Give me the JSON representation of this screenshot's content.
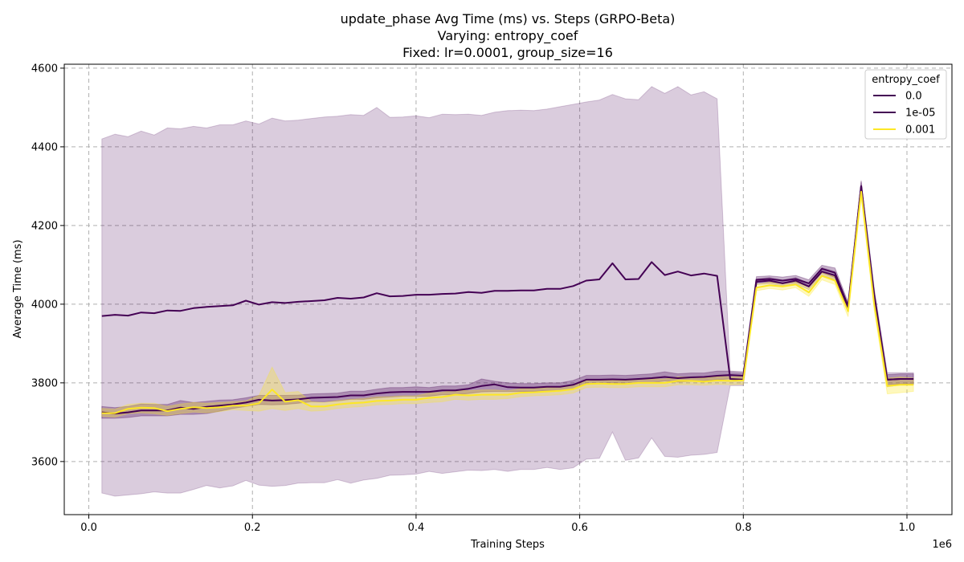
{
  "chart_data": {
    "type": "line",
    "title_lines": [
      "update_phase Avg Time (ms) vs. Steps (GRPO-Beta)",
      "Varying: entropy_coef",
      "Fixed: lr=0.0001, group_size=16"
    ],
    "xlabel": "Training Steps",
    "ylabel": "Average Time (ms)",
    "x_offset_label": "1e6",
    "xlim": [
      -0.03,
      1.055
    ],
    "ylim": [
      3465,
      4610
    ],
    "xticks": [
      0.0,
      0.2,
      0.4,
      0.6,
      0.8,
      1.0
    ],
    "xtick_labels": [
      "0.0",
      "0.2",
      "0.4",
      "0.6",
      "0.8",
      "1.0"
    ],
    "yticks": [
      3600,
      3800,
      4000,
      4200,
      4400,
      4600
    ],
    "ytick_labels": [
      "3600",
      "3800",
      "4000",
      "4200",
      "4400",
      "4600"
    ],
    "grid": true,
    "legend": {
      "title": "entropy_coef",
      "placement": "top-right"
    },
    "series": [
      {
        "name": "0.0",
        "color": "#440154",
        "band_opacity": 0.2,
        "x": [
          0.016,
          0.032,
          0.048,
          0.064,
          0.08,
          0.096,
          0.112,
          0.128,
          0.144,
          0.16,
          0.176,
          0.192,
          0.208,
          0.224,
          0.24,
          0.256,
          0.272,
          0.288,
          0.304,
          0.32,
          0.336,
          0.352,
          0.368,
          0.384,
          0.4,
          0.416,
          0.432,
          0.448,
          0.464,
          0.48,
          0.496,
          0.512,
          0.528,
          0.544,
          0.56,
          0.576,
          0.592,
          0.608,
          0.624,
          0.64,
          0.656,
          0.672,
          0.688,
          0.704,
          0.72,
          0.736,
          0.752,
          0.768,
          0.784,
          0.8,
          0.816,
          0.832,
          0.848,
          0.864,
          0.88,
          0.896,
          0.912,
          0.928,
          0.944,
          0.96,
          0.976,
          0.992,
          1.008
        ],
        "y": [
          3970,
          3973,
          3971,
          3979,
          3977,
          3984,
          3983,
          3990,
          3993,
          3995,
          3997,
          4009,
          3999,
          4005,
          4003,
          4006,
          4008,
          4010,
          4016,
          4014,
          4017,
          4028,
          4020,
          4021,
          4024,
          4024,
          4026,
          4027,
          4031,
          4029,
          4034,
          4034,
          4035,
          4035,
          4039,
          4039,
          4046,
          4060,
          4063,
          4104,
          4063,
          4064,
          4107,
          4074,
          4083,
          4073,
          4078,
          4072,
          3810,
          3808,
          4057,
          4060,
          4053,
          4060,
          4045,
          4083,
          4073,
          3990,
          4300,
          4025,
          3808,
          3810,
          3810
        ],
        "lower": [
          3520,
          3512,
          3515,
          3518,
          3523,
          3520,
          3520,
          3529,
          3539,
          3533,
          3538,
          3552,
          3540,
          3537,
          3539,
          3545,
          3546,
          3546,
          3554,
          3545,
          3553,
          3557,
          3565,
          3566,
          3568,
          3575,
          3570,
          3574,
          3578,
          3577,
          3580,
          3575,
          3580,
          3580,
          3585,
          3580,
          3584,
          3606,
          3608,
          3675,
          3603,
          3609,
          3660,
          3613,
          3611,
          3616,
          3618,
          3623,
          3793,
          3793,
          4050,
          4052,
          4047,
          4052,
          4037,
          4073,
          4063,
          3982,
          4285,
          4008,
          3790,
          3795,
          3795
        ],
        "upper": [
          4420,
          4432,
          4426,
          4440,
          4430,
          4448,
          4446,
          4452,
          4448,
          4456,
          4456,
          4466,
          4458,
          4473,
          4466,
          4468,
          4472,
          4476,
          4478,
          4482,
          4480,
          4500,
          4475,
          4476,
          4479,
          4474,
          4483,
          4482,
          4483,
          4480,
          4488,
          4492,
          4493,
          4492,
          4496,
          4502,
          4508,
          4514,
          4519,
          4533,
          4522,
          4520,
          4553,
          4536,
          4553,
          4532,
          4540,
          4522,
          3826,
          3824,
          4064,
          4068,
          4061,
          4068,
          4053,
          4093,
          4083,
          3998,
          4315,
          4042,
          3826,
          3826,
          3826
        ]
      },
      {
        "name": "1e-05",
        "color": "#440154",
        "band_opacity": 0.3,
        "x": [
          0.016,
          0.032,
          0.048,
          0.064,
          0.08,
          0.096,
          0.112,
          0.128,
          0.144,
          0.16,
          0.176,
          0.192,
          0.208,
          0.224,
          0.24,
          0.256,
          0.272,
          0.288,
          0.304,
          0.32,
          0.336,
          0.352,
          0.368,
          0.384,
          0.4,
          0.416,
          0.432,
          0.448,
          0.464,
          0.48,
          0.496,
          0.512,
          0.528,
          0.544,
          0.56,
          0.576,
          0.592,
          0.608,
          0.624,
          0.64,
          0.656,
          0.672,
          0.688,
          0.704,
          0.72,
          0.736,
          0.752,
          0.768,
          0.784,
          0.8,
          0.816,
          0.832,
          0.848,
          0.864,
          0.88,
          0.896,
          0.912,
          0.928,
          0.944,
          0.96,
          0.976,
          0.992,
          1.008
        ],
        "y": [
          3725,
          3722,
          3725,
          3730,
          3730,
          3730,
          3737,
          3734,
          3739,
          3742,
          3745,
          3750,
          3757,
          3755,
          3756,
          3758,
          3762,
          3763,
          3764,
          3768,
          3768,
          3773,
          3776,
          3777,
          3777,
          3777,
          3781,
          3781,
          3785,
          3792,
          3796,
          3789,
          3788,
          3788,
          3790,
          3790,
          3795,
          3808,
          3808,
          3809,
          3808,
          3810,
          3812,
          3815,
          3812,
          3814,
          3815,
          3818,
          3820,
          3818,
          4062,
          4064,
          4060,
          4064,
          4053,
          4090,
          4080,
          3995,
          4300,
          4010,
          3808,
          3810,
          3810
        ],
        "lower": [
          3710,
          3710,
          3712,
          3716,
          3716,
          3716,
          3720,
          3720,
          3722,
          3728,
          3735,
          3740,
          3745,
          3744,
          3745,
          3748,
          3752,
          3752,
          3754,
          3758,
          3758,
          3762,
          3764,
          3766,
          3766,
          3766,
          3770,
          3770,
          3773,
          3777,
          3778,
          3778,
          3778,
          3778,
          3780,
          3780,
          3784,
          3798,
          3798,
          3800,
          3798,
          3800,
          3800,
          3805,
          3802,
          3804,
          3805,
          3808,
          3810,
          3808,
          4054,
          4056,
          4052,
          4056,
          4044,
          4080,
          4068,
          3985,
          4288,
          3998,
          3795,
          3797,
          3797
        ],
        "upper": [
          3740,
          3737,
          3740,
          3746,
          3745,
          3745,
          3755,
          3750,
          3753,
          3756,
          3757,
          3762,
          3768,
          3768,
          3768,
          3769,
          3772,
          3773,
          3774,
          3779,
          3779,
          3784,
          3788,
          3788,
          3790,
          3788,
          3792,
          3792,
          3795,
          3810,
          3804,
          3800,
          3798,
          3798,
          3800,
          3800,
          3806,
          3819,
          3819,
          3820,
          3819,
          3821,
          3823,
          3828,
          3823,
          3825,
          3825,
          3830,
          3830,
          3828,
          4070,
          4072,
          4069,
          4073,
          4062,
          4099,
          4092,
          4005,
          4312,
          4022,
          3821,
          3823,
          3823
        ]
      },
      {
        "name": "0.001",
        "color": "#fde725",
        "band_opacity": 0.3,
        "x": [
          0.016,
          0.032,
          0.048,
          0.064,
          0.08,
          0.096,
          0.112,
          0.128,
          0.144,
          0.16,
          0.176,
          0.192,
          0.208,
          0.224,
          0.24,
          0.256,
          0.272,
          0.288,
          0.304,
          0.32,
          0.336,
          0.352,
          0.368,
          0.384,
          0.4,
          0.416,
          0.432,
          0.448,
          0.464,
          0.48,
          0.496,
          0.512,
          0.528,
          0.544,
          0.56,
          0.576,
          0.592,
          0.608,
          0.624,
          0.64,
          0.656,
          0.672,
          0.688,
          0.704,
          0.72,
          0.736,
          0.752,
          0.768,
          0.784,
          0.8,
          0.816,
          0.832,
          0.848,
          0.864,
          0.88,
          0.896,
          0.912,
          0.928,
          0.944,
          0.96,
          0.976,
          0.992,
          1.008
        ],
        "y": [
          3723,
          3723,
          3734,
          3737,
          3736,
          3728,
          3734,
          3738,
          3736,
          3738,
          3742,
          3742,
          3748,
          3783,
          3752,
          3756,
          3740,
          3740,
          3745,
          3748,
          3750,
          3754,
          3755,
          3757,
          3757,
          3762,
          3764,
          3770,
          3768,
          3770,
          3770,
          3770,
          3775,
          3776,
          3778,
          3780,
          3784,
          3797,
          3798,
          3797,
          3797,
          3800,
          3800,
          3800,
          3805,
          3805,
          3803,
          3806,
          3805,
          3806,
          4042,
          4048,
          4045,
          4050,
          4030,
          4072,
          4060,
          3982,
          4286,
          4000,
          3792,
          3795,
          3795
        ],
        "lower": [
          3715,
          3713,
          3722,
          3724,
          3722,
          3717,
          3722,
          3726,
          3724,
          3727,
          3732,
          3730,
          3728,
          3735,
          3730,
          3735,
          3728,
          3730,
          3735,
          3738,
          3740,
          3744,
          3745,
          3747,
          3747,
          3750,
          3752,
          3758,
          3756,
          3758,
          3758,
          3760,
          3765,
          3767,
          3768,
          3770,
          3774,
          3788,
          3789,
          3788,
          3788,
          3790,
          3790,
          3790,
          3795,
          3795,
          3794,
          3796,
          3795,
          3796,
          4034,
          4040,
          4036,
          4042,
          4020,
          4062,
          4050,
          3968,
          4272,
          3985,
          3772,
          3775,
          3778
        ],
        "upper": [
          3735,
          3733,
          3745,
          3748,
          3748,
          3740,
          3746,
          3750,
          3748,
          3750,
          3752,
          3754,
          3768,
          3840,
          3775,
          3778,
          3752,
          3750,
          3755,
          3758,
          3760,
          3764,
          3765,
          3767,
          3767,
          3774,
          3776,
          3782,
          3780,
          3782,
          3782,
          3780,
          3785,
          3785,
          3788,
          3790,
          3794,
          3806,
          3807,
          3806,
          3806,
          3810,
          3810,
          3810,
          3815,
          3815,
          3812,
          3816,
          3815,
          3816,
          4050,
          4056,
          4054,
          4058,
          4040,
          4082,
          4070,
          3996,
          4300,
          4015,
          3812,
          3815,
          3812
        ]
      }
    ]
  }
}
